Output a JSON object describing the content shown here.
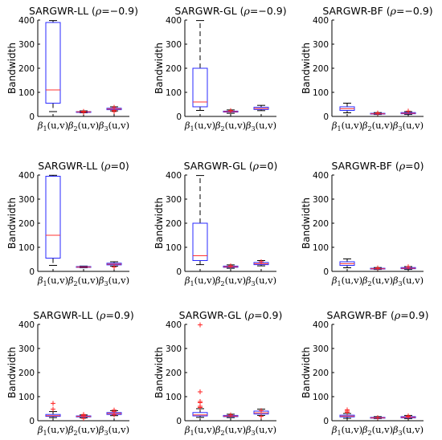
{
  "chart_data": [
    {
      "type": "box",
      "title": {
        "main": "SARGWR-LL (",
        "rho": "ρ",
        "rest": "=−0.9)"
      },
      "ylabel": "Bandwidth",
      "ylim": [
        0,
        400
      ],
      "yticks": [
        0,
        100,
        200,
        300,
        400
      ],
      "categories": [
        "1",
        "2",
        "3"
      ],
      "boxes": [
        {
          "whisker_low": 20,
          "q1": 55,
          "median": 110,
          "q3": 390,
          "whisker_high": 398,
          "outliers": []
        },
        {
          "whisker_low": 15,
          "q1": 18,
          "median": 19,
          "q3": 20,
          "whisker_high": 23,
          "outliers": [
            17,
            21
          ]
        },
        {
          "whisker_low": 23,
          "q1": 28,
          "median": 31,
          "q3": 34,
          "whisker_high": 40,
          "outliers": [
            20,
            25,
            38
          ]
        }
      ]
    },
    {
      "type": "box",
      "title": {
        "main": "SARGWR-GL (",
        "rho": "ρ",
        "rest": "=−0.9)"
      },
      "ylabel": "Bandwidth",
      "ylim": [
        0,
        400
      ],
      "yticks": [
        0,
        100,
        200,
        300,
        400
      ],
      "categories": [
        "1",
        "2",
        "3"
      ],
      "boxes": [
        {
          "whisker_low": 25,
          "q1": 40,
          "median": 60,
          "q3": 200,
          "whisker_high": 398,
          "outliers": []
        },
        {
          "whisker_low": 13,
          "q1": 18,
          "median": 20,
          "q3": 22,
          "whisker_high": 27,
          "outliers": [
            24
          ]
        },
        {
          "whisker_low": 24,
          "q1": 29,
          "median": 33,
          "q3": 38,
          "whisker_high": 46,
          "outliers": []
        }
      ]
    },
    {
      "type": "box",
      "title": {
        "main": "SARGWR-BF (",
        "rho": "ρ",
        "rest": "=−0.9)"
      },
      "ylabel": "Bandwidth",
      "ylim": [
        0,
        400
      ],
      "yticks": [
        0,
        100,
        200,
        300,
        400
      ],
      "categories": [
        "1",
        "2",
        "3"
      ],
      "boxes": [
        {
          "whisker_low": 15,
          "q1": 25,
          "median": 32,
          "q3": 40,
          "whisker_high": 55,
          "outliers": []
        },
        {
          "whisker_low": 8,
          "q1": 10,
          "median": 11,
          "q3": 13,
          "whisker_high": 16,
          "outliers": [
            14
          ]
        },
        {
          "whisker_low": 8,
          "q1": 11,
          "median": 13,
          "q3": 16,
          "whisker_high": 20,
          "outliers": [
            22
          ]
        }
      ]
    },
    {
      "type": "box",
      "title": {
        "main": "SARGWR-LL (",
        "rho": "ρ",
        "rest": "=0)"
      },
      "ylabel": "Bandwidth",
      "ylim": [
        0,
        400
      ],
      "yticks": [
        0,
        100,
        200,
        300,
        400
      ],
      "categories": [
        "1",
        "2",
        "3"
      ],
      "boxes": [
        {
          "whisker_low": 25,
          "q1": 55,
          "median": 150,
          "q3": 395,
          "whisker_high": 399,
          "outliers": []
        },
        {
          "whisker_low": 15,
          "q1": 17,
          "median": 18,
          "q3": 20,
          "whisker_high": 22,
          "outliers": []
        },
        {
          "whisker_low": 22,
          "q1": 27,
          "median": 30,
          "q3": 34,
          "whisker_high": 40,
          "outliers": [
            18
          ]
        }
      ]
    },
    {
      "type": "box",
      "title": {
        "main": "SARGWR-GL (",
        "rho": "ρ",
        "rest": "=0)"
      },
      "ylabel": "Bandwidth",
      "ylim": [
        0,
        400
      ],
      "yticks": [
        0,
        100,
        200,
        300,
        400
      ],
      "categories": [
        "1",
        "2",
        "3"
      ],
      "boxes": [
        {
          "whisker_low": 28,
          "q1": 45,
          "median": 65,
          "q3": 200,
          "whisker_high": 398,
          "outliers": []
        },
        {
          "whisker_low": 13,
          "q1": 17,
          "median": 19,
          "q3": 22,
          "whisker_high": 27,
          "outliers": [
            23
          ]
        },
        {
          "whisker_low": 23,
          "q1": 28,
          "median": 32,
          "q3": 37,
          "whisker_high": 45,
          "outliers": [
            40
          ]
        }
      ]
    },
    {
      "type": "box",
      "title": {
        "main": "SARGWR-BF (",
        "rho": "ρ",
        "rest": "=0)"
      },
      "ylabel": "Bandwidth",
      "ylim": [
        0,
        400
      ],
      "yticks": [
        0,
        100,
        200,
        300,
        400
      ],
      "categories": [
        "1",
        "2",
        "3"
      ],
      "boxes": [
        {
          "whisker_low": 15,
          "q1": 25,
          "median": 32,
          "q3": 40,
          "whisker_high": 52,
          "outliers": []
        },
        {
          "whisker_low": 8,
          "q1": 10,
          "median": 11,
          "q3": 13,
          "whisker_high": 16,
          "outliers": [
            14
          ]
        },
        {
          "whisker_low": 8,
          "q1": 11,
          "median": 13,
          "q3": 16,
          "whisker_high": 20,
          "outliers": [
            19
          ]
        }
      ]
    },
    {
      "type": "box",
      "title": {
        "main": "SARGWR-LL (",
        "rho": "ρ",
        "rest": "=0.9)"
      },
      "ylabel": "Bandwidth",
      "ylim": [
        0,
        400
      ],
      "yticks": [
        0,
        100,
        200,
        300,
        400
      ],
      "categories": [
        "1",
        "2",
        "3"
      ],
      "boxes": [
        {
          "whisker_low": 13,
          "q1": 18,
          "median": 21,
          "q3": 26,
          "whisker_high": 38,
          "outliers": [
            48,
            72
          ]
        },
        {
          "whisker_low": 12,
          "q1": 16,
          "median": 18,
          "q3": 20,
          "whisker_high": 24,
          "outliers": [
            10,
            22,
            26
          ]
        },
        {
          "whisker_low": 21,
          "q1": 26,
          "median": 30,
          "q3": 34,
          "whisker_high": 42,
          "outliers": [
            24,
            38,
            44
          ]
        }
      ]
    },
    {
      "type": "box",
      "title": {
        "main": "SARGWR-GL (",
        "rho": "ρ",
        "rest": "=0.9)"
      },
      "ylabel": "Bandwidth",
      "ylim": [
        0,
        400
      ],
      "yticks": [
        0,
        100,
        200,
        300,
        400
      ],
      "categories": [
        "1",
        "2",
        "3"
      ],
      "boxes": [
        {
          "whisker_low": 14,
          "q1": 20,
          "median": 24,
          "q3": 34,
          "whisker_high": 50,
          "outliers": [
            55,
            60,
            75,
            80,
            120,
            398
          ]
        },
        {
          "whisker_low": 13,
          "q1": 17,
          "median": 19,
          "q3": 22,
          "whisker_high": 27,
          "outliers": [
            24
          ]
        },
        {
          "whisker_low": 22,
          "q1": 28,
          "median": 33,
          "q3": 40,
          "whisker_high": 48,
          "outliers": [
            18,
            42
          ]
        }
      ]
    },
    {
      "type": "box",
      "title": {
        "main": "SARGWR-BF (",
        "rho": "ρ",
        "rest": "=0.9)"
      },
      "ylabel": "Bandwidth",
      "ylim": [
        0,
        400
      ],
      "yticks": [
        0,
        100,
        200,
        300,
        400
      ],
      "categories": [
        "1",
        "2",
        "3"
      ],
      "boxes": [
        {
          "whisker_low": 10,
          "q1": 16,
          "median": 19,
          "q3": 23,
          "whisker_high": 30,
          "outliers": [
            35,
            40,
            45
          ]
        },
        {
          "whisker_low": 9,
          "q1": 11,
          "median": 12,
          "q3": 14,
          "whisker_high": 17,
          "outliers": [
            13
          ]
        },
        {
          "whisker_low": 9,
          "q1": 12,
          "median": 14,
          "q3": 17,
          "whisker_high": 22,
          "outliers": [
            18,
            20
          ]
        }
      ]
    }
  ],
  "tick_label": {
    "beta": "β",
    "arg": "(u,v)"
  },
  "colors": {
    "box": "#2a2aff",
    "median": "#ff3333",
    "whisker": "#000000",
    "outlier": "#ff2222",
    "axis": "#000000"
  }
}
